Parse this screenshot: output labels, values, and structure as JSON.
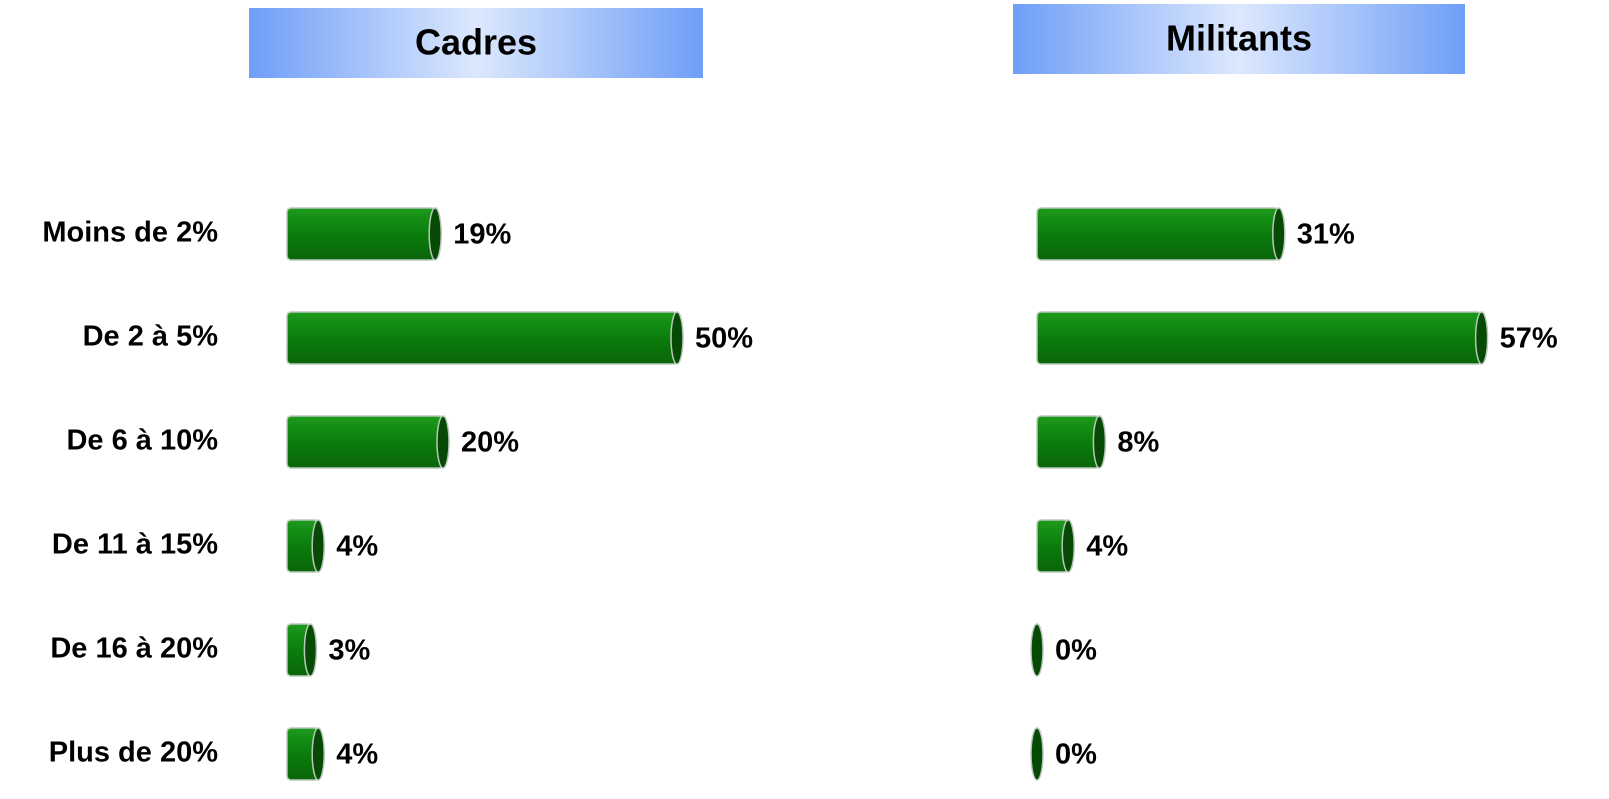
{
  "chart_data": [
    {
      "type": "bar",
      "title": "Cadres",
      "categories": [
        "Moins de 2%",
        "De 2 à 5%",
        "De 6 à 10%",
        "De 11 à 15%",
        "De 16 à 20%",
        "Plus de 20%"
      ],
      "values": [
        19,
        50,
        20,
        4,
        3,
        4
      ],
      "value_labels": [
        "19%",
        "50%",
        "20%",
        "4%",
        "3%",
        "4%"
      ],
      "color": "#0b7d0b"
    },
    {
      "type": "bar",
      "title": "Militants",
      "values": [
        31,
        57,
        8,
        4,
        0,
        0
      ],
      "value_labels": [
        "31%",
        "57%",
        "8%",
        "4%",
        "0%",
        "0%"
      ],
      "color": "#0b7d0b"
    }
  ]
}
